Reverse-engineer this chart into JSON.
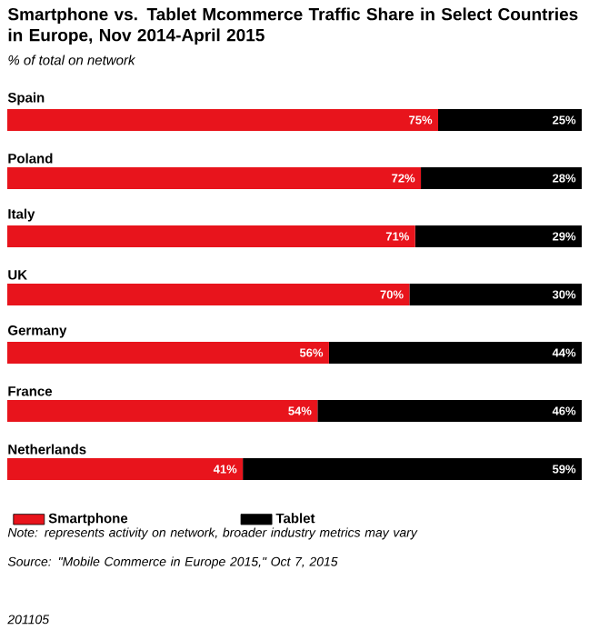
{
  "chart_data": {
    "type": "bar",
    "orientation": "horizontal",
    "stacked": true,
    "title": "Smartphone vs. Tablet Mcommerce Traffic Share in Select Countries in Europe, Nov 2014-April 2015",
    "subtitle": "% of total on network",
    "categories": [
      "Spain",
      "Poland",
      "Italy",
      "UK",
      "Germany",
      "France",
      "Netherlands"
    ],
    "series": [
      {
        "name": "Smartphone",
        "color": "#e8141c",
        "values": [
          75,
          72,
          71,
          70,
          56,
          54,
          41
        ],
        "value_labels": [
          "75%",
          "72%",
          "71%",
          "70%",
          "56%",
          "54%",
          "41%"
        ]
      },
      {
        "name": "Tablet",
        "color": "#000000",
        "values": [
          25,
          28,
          29,
          30,
          44,
          46,
          59
        ],
        "value_labels": [
          "25%",
          "28%",
          "29%",
          "30%",
          "44%",
          "46%",
          "59%"
        ]
      }
    ],
    "xlim": [
      0,
      100
    ],
    "tick_labels": false,
    "legend": "bottom",
    "annotations": [
      "Note: represents activity on network, broader industry metrics may vary",
      "Source: \"Mobile Commerce in Europe 2015,\" Oct 7, 2015",
      "201105"
    ]
  }
}
